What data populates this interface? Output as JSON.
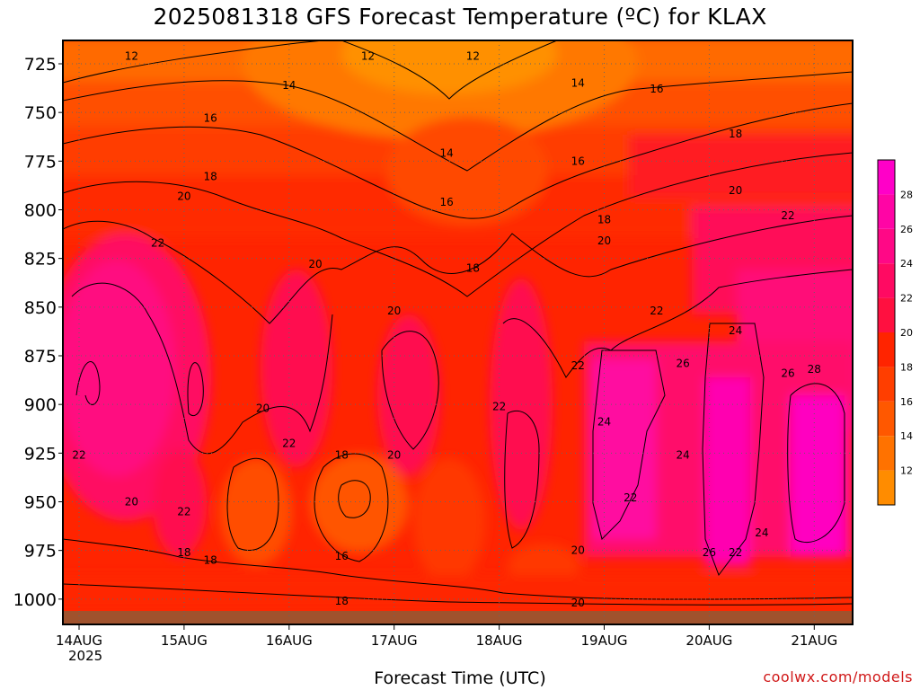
{
  "header": {
    "title": "2025081318 GFS Forecast Temperature (ºC) for KLAX"
  },
  "footer": {
    "xlabel": "Forecast Time (UTC)",
    "credit": "coolwx.com/models",
    "year": "2025"
  },
  "chart_data": {
    "type": "heatmap",
    "title": "2025081318 GFS Forecast Temperature (ºC) for KLAX",
    "xlabel": "Forecast Time (UTC)",
    "ylabel": "",
    "x_ticks": [
      "14AUG",
      "15AUG",
      "16AUG",
      "17AUG",
      "18AUG",
      "19AUG",
      "20AUG",
      "21AUG"
    ],
    "y_ticks": [
      725,
      750,
      775,
      800,
      825,
      850,
      875,
      900,
      925,
      950,
      975,
      1000
    ],
    "ylim": [
      1013,
      713
    ],
    "grid": true,
    "colorbar": {
      "levels": [
        10,
        12,
        14,
        16,
        18,
        20,
        22,
        24,
        26,
        28,
        30
      ],
      "labels": [
        "12",
        "14",
        "16",
        "18",
        "20",
        "22",
        "24",
        "26",
        "28"
      ],
      "colors": [
        "#ff8c00",
        "#ff7200",
        "#ff5800",
        "#ff3e00",
        "#ff2400",
        "#ff1040",
        "#ff0a62",
        "#ff0886",
        "#ff05a5",
        "#ff00c8"
      ]
    },
    "contour_labels": [
      {
        "text": "12",
        "x": "14AUG 12Z",
        "y": 721
      },
      {
        "text": "12",
        "x": "16AUG 18Z",
        "y": 721
      },
      {
        "text": "12",
        "x": "17AUG 18Z",
        "y": 721
      },
      {
        "text": "14",
        "x": "16AUG 00Z",
        "y": 736
      },
      {
        "text": "14",
        "x": "18AUG 18Z",
        "y": 735
      },
      {
        "text": "14",
        "x": "17AUG 12Z",
        "y": 771
      },
      {
        "text": "16",
        "x": "19AUG 12Z",
        "y": 738
      },
      {
        "text": "16",
        "x": "15AUG 06Z",
        "y": 753
      },
      {
        "text": "16",
        "x": "18AUG 18Z",
        "y": 775
      },
      {
        "text": "16",
        "x": "17AUG 12Z",
        "y": 796
      },
      {
        "text": "18",
        "x": "20AUG 06Z",
        "y": 761
      },
      {
        "text": "18",
        "x": "15AUG 06Z",
        "y": 783
      },
      {
        "text": "18",
        "x": "19AUG 00Z",
        "y": 805
      },
      {
        "text": "18",
        "x": "17AUG 18Z",
        "y": 830
      },
      {
        "text": "20",
        "x": "15AUG 00Z",
        "y": 793
      },
      {
        "text": "20",
        "x": "20AUG 06Z",
        "y": 790
      },
      {
        "text": "20",
        "x": "19AUG 00Z",
        "y": 816
      },
      {
        "text": "20",
        "x": "16AUG 06Z",
        "y": 828
      },
      {
        "text": "20",
        "x": "17AUG 00Z",
        "y": 852
      },
      {
        "text": "20",
        "x": "15AUG 18Z",
        "y": 902
      },
      {
        "text": "20",
        "x": "17AUG 00Z",
        "y": 926
      },
      {
        "text": "20",
        "x": "14AUG 12Z",
        "y": 950
      },
      {
        "text": "20",
        "x": "18AUG 18Z",
        "y": 975
      },
      {
        "text": "20",
        "x": "18AUG 18Z",
        "y": 1002
      },
      {
        "text": "22",
        "x": "14AUG 18Z",
        "y": 817
      },
      {
        "text": "22",
        "x": "20AUG 18Z",
        "y": 803
      },
      {
        "text": "22",
        "x": "19AUG 12Z",
        "y": 852
      },
      {
        "text": "22",
        "x": "18AUG 18Z",
        "y": 880
      },
      {
        "text": "22",
        "x": "18AUG 00Z",
        "y": 901
      },
      {
        "text": "22",
        "x": "16AUG 00Z",
        "y": 920
      },
      {
        "text": "22",
        "x": "14AUG 00Z",
        "y": 926
      },
      {
        "text": "22",
        "x": "15AUG 00Z",
        "y": 955
      },
      {
        "text": "22",
        "x": "19AUG 06Z",
        "y": 948
      },
      {
        "text": "22",
        "x": "20AUG 06Z",
        "y": 976
      },
      {
        "text": "24",
        "x": "20AUG 06Z",
        "y": 862
      },
      {
        "text": "24",
        "x": "19AUG 00Z",
        "y": 909
      },
      {
        "text": "24",
        "x": "19AUG 18Z",
        "y": 926
      },
      {
        "text": "24",
        "x": "20AUG 12Z",
        "y": 966
      },
      {
        "text": "26",
        "x": "19AUG 18Z",
        "y": 879
      },
      {
        "text": "26",
        "x": "20AUG 18Z",
        "y": 884
      },
      {
        "text": "26",
        "x": "20AUG 00Z",
        "y": 976
      },
      {
        "text": "28",
        "x": "21AUG 00Z",
        "y": 882
      },
      {
        "text": "18",
        "x": "15AUG 00Z",
        "y": 976
      },
      {
        "text": "18",
        "x": "15AUG 06Z",
        "y": 980
      },
      {
        "text": "18",
        "x": "16AUG 12Z",
        "y": 926
      },
      {
        "text": "16",
        "x": "16AUG 12Z",
        "y": 978
      },
      {
        "text": "18",
        "x": "16AUG 12Z",
        "y": 1001
      }
    ]
  }
}
